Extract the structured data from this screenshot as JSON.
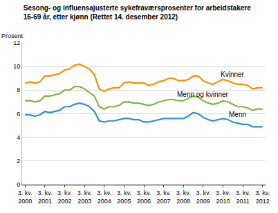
{
  "chart_data": {
    "type": "line",
    "title": "Sesong- og influensajusterte sykefraværsprosenter for arbeidstakere\n16-69 år, etter kjønn (Rettet 14. desember 2012)",
    "y_label": "Prosent",
    "categories": [
      "3. kv.\n2000",
      null,
      null,
      null,
      "3. kv.\n2001",
      null,
      null,
      null,
      "3. kv.\n2002",
      null,
      null,
      null,
      "3. kv.\n2003",
      null,
      null,
      null,
      "3. kv.\n2004",
      null,
      null,
      null,
      "3. kv.\n2005",
      null,
      null,
      null,
      "3. kv.\n2006",
      null,
      null,
      null,
      "3. kv.\n2007",
      null,
      null,
      null,
      "3. kv.\n2008",
      null,
      null,
      null,
      "3. kv.\n2009",
      null,
      null,
      null,
      "3. kv.\n2010",
      null,
      null,
      null,
      "3. kv.\n2011",
      null,
      null,
      null,
      "3. kv.\n2012"
    ],
    "series": [
      {
        "name": "Kvinner",
        "color": "#f39200",
        "values": [
          8.6,
          8.7,
          8.6,
          8.7,
          9.2,
          9.2,
          9.3,
          9.4,
          9.7,
          9.8,
          10.1,
          10.2,
          10.0,
          9.8,
          9.3,
          8.1,
          7.9,
          8.1,
          8.2,
          8.2,
          8.6,
          8.7,
          8.6,
          8.6,
          8.6,
          8.4,
          8.5,
          8.7,
          8.8,
          9.0,
          9.0,
          8.8,
          8.8,
          8.9,
          9.2,
          9.2,
          8.8,
          8.6,
          8.5,
          8.7,
          8.9,
          8.8,
          8.6,
          8.5,
          8.5,
          8.4,
          8.1,
          8.2,
          8.2
        ]
      },
      {
        "name": "Menn og kvinner",
        "color": "#7fb539",
        "values": [
          7.1,
          7.1,
          7.0,
          7.1,
          7.5,
          7.5,
          7.6,
          7.7,
          8.0,
          8.0,
          8.3,
          8.3,
          8.1,
          7.8,
          7.5,
          6.6,
          6.4,
          6.6,
          6.6,
          6.7,
          7.0,
          7.0,
          6.9,
          6.9,
          6.8,
          6.7,
          6.8,
          7.0,
          7.1,
          7.2,
          7.2,
          7.1,
          7.1,
          7.3,
          7.5,
          7.4,
          7.1,
          6.9,
          6.8,
          6.9,
          7.1,
          7.0,
          6.8,
          6.6,
          6.6,
          6.5,
          6.3,
          6.4,
          6.4
        ]
      },
      {
        "name": "Menn",
        "color": "#2f8fce",
        "values": [
          5.9,
          5.9,
          5.8,
          5.9,
          6.2,
          6.1,
          6.2,
          6.3,
          6.6,
          6.6,
          6.8,
          6.9,
          6.8,
          6.6,
          6.2,
          5.4,
          5.3,
          5.4,
          5.4,
          5.5,
          5.6,
          5.6,
          5.5,
          5.5,
          5.3,
          5.3,
          5.4,
          5.5,
          5.6,
          5.6,
          5.6,
          5.6,
          5.6,
          5.8,
          6.1,
          6.0,
          5.7,
          5.5,
          5.4,
          5.5,
          5.6,
          5.5,
          5.3,
          5.2,
          5.1,
          5.1,
          4.9,
          4.9,
          4.9
        ]
      }
    ],
    "ylim": [
      0,
      12
    ],
    "yticks": [
      0,
      2,
      4,
      6,
      8,
      10,
      12
    ],
    "grid": true,
    "legend": "none"
  }
}
